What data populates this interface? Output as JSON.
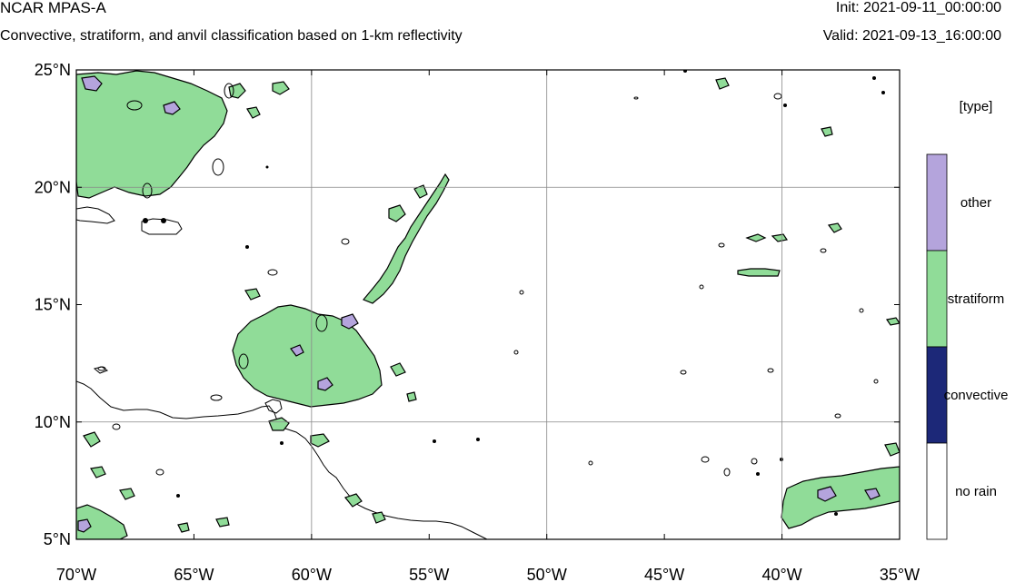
{
  "header": {
    "title": "NCAR MPAS-A",
    "subtitle": "Convective, stratiform, and anvil classification based on 1-km reflectivity",
    "init": "Init: 2021-09-11_00:00:00",
    "valid": "Valid: 2021-09-13_16:00:00"
  },
  "map": {
    "lon_range": [
      -70,
      -35
    ],
    "lat_range": [
      5,
      25
    ],
    "lon_ticks": [
      {
        "value": -70,
        "label": "70°W"
      },
      {
        "value": -65,
        "label": "65°W"
      },
      {
        "value": -60,
        "label": "60°W"
      },
      {
        "value": -55,
        "label": "55°W"
      },
      {
        "value": -50,
        "label": "50°W"
      },
      {
        "value": -45,
        "label": "45°W"
      },
      {
        "value": -40,
        "label": "40°W"
      },
      {
        "value": -35,
        "label": "35°W"
      }
    ],
    "lat_ticks": [
      {
        "value": 5,
        "label": "5°N"
      },
      {
        "value": 10,
        "label": "10°N"
      },
      {
        "value": 15,
        "label": "15°N"
      },
      {
        "value": 20,
        "label": "20°N"
      },
      {
        "value": 25,
        "label": "25°N"
      }
    ],
    "grid_lon": [
      -60,
      -50,
      -40
    ],
    "grid_lat": [
      10,
      20
    ],
    "grid": true
  },
  "legend": {
    "title": "[type]",
    "categories": [
      {
        "label": "other",
        "color": "#b4a4dc"
      },
      {
        "label": "stratiform",
        "color": "#90dc98"
      },
      {
        "label": "convective",
        "color": "#1c2878"
      },
      {
        "label": "no rain",
        "color": "#ffffff"
      }
    ]
  },
  "colors": {
    "stratiform": "#90dc98",
    "other": "#b4a4dc",
    "contour": "#000000",
    "grid": "#888888"
  }
}
